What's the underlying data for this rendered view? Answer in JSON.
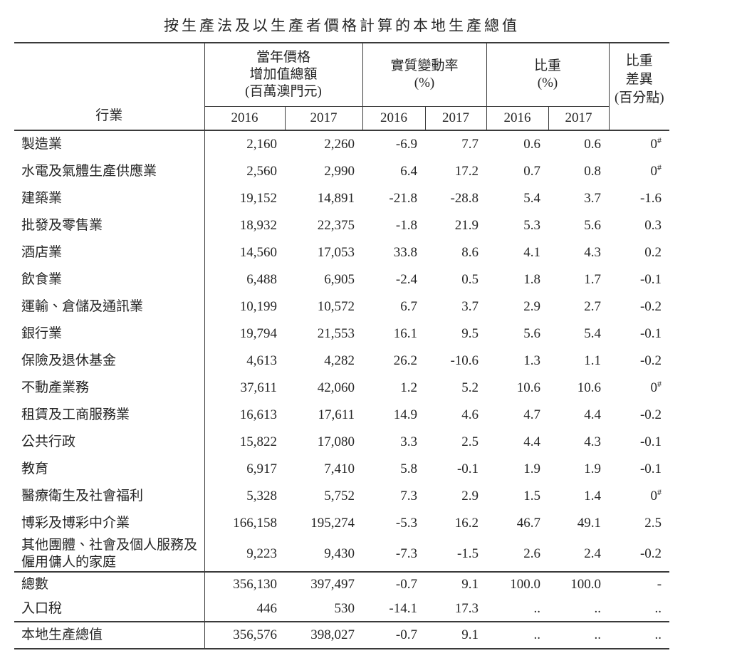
{
  "title": "按生產法及以生產者價格計算的本地生產總值",
  "table": {
    "industry_header": "行業",
    "groups": [
      {
        "label": "當年價格\n增加值總額\n(百萬澳門元)",
        "years": [
          "2016",
          "2017"
        ]
      },
      {
        "label": "實質變動率\n(%)",
        "years": [
          "2016",
          "2017"
        ]
      },
      {
        "label": "比重\n(%)",
        "years": [
          "2016",
          "2017"
        ]
      }
    ],
    "diff_header": "比重\n差異\n(百分點)",
    "sections": [
      {
        "name": "industries",
        "rows": [
          {
            "industry": "製造業",
            "values": [
              "2,160",
              "2,260",
              "-6.9",
              "7.7",
              "0.6",
              "0.6",
              "0#"
            ]
          },
          {
            "industry": "水電及氣體生產供應業",
            "values": [
              "2,560",
              "2,990",
              "6.4",
              "17.2",
              "0.7",
              "0.8",
              "0#"
            ]
          },
          {
            "industry": "建築業",
            "values": [
              "19,152",
              "14,891",
              "-21.8",
              "-28.8",
              "5.4",
              "3.7",
              "-1.6"
            ]
          },
          {
            "industry": "批發及零售業",
            "values": [
              "18,932",
              "22,375",
              "-1.8",
              "21.9",
              "5.3",
              "5.6",
              "0.3"
            ]
          },
          {
            "industry": "酒店業",
            "values": [
              "14,560",
              "17,053",
              "33.8",
              "8.6",
              "4.1",
              "4.3",
              "0.2"
            ]
          },
          {
            "industry": "飲食業",
            "values": [
              "6,488",
              "6,905",
              "-2.4",
              "0.5",
              "1.8",
              "1.7",
              "-0.1"
            ]
          },
          {
            "industry": "運輸、倉儲及通訊業",
            "values": [
              "10,199",
              "10,572",
              "6.7",
              "3.7",
              "2.9",
              "2.7",
              "-0.2"
            ]
          },
          {
            "industry": "銀行業",
            "values": [
              "19,794",
              "21,553",
              "16.1",
              "9.5",
              "5.6",
              "5.4",
              "-0.1"
            ]
          },
          {
            "industry": "保險及退休基金",
            "values": [
              "4,613",
              "4,282",
              "26.2",
              "-10.6",
              "1.3",
              "1.1",
              "-0.2"
            ]
          },
          {
            "industry": "不動產業務",
            "values": [
              "37,611",
              "42,060",
              "1.2",
              "5.2",
              "10.6",
              "10.6",
              "0#"
            ]
          },
          {
            "industry": "租賃及工商服務業",
            "values": [
              "16,613",
              "17,611",
              "14.9",
              "4.6",
              "4.7",
              "4.4",
              "-0.2"
            ]
          },
          {
            "industry": "公共行政",
            "values": [
              "15,822",
              "17,080",
              "3.3",
              "2.5",
              "4.4",
              "4.3",
              "-0.1"
            ]
          },
          {
            "industry": "教育",
            "values": [
              "6,917",
              "7,410",
              "5.8",
              "-0.1",
              "1.9",
              "1.9",
              "-0.1"
            ]
          },
          {
            "industry": "醫療衛生及社會福利",
            "values": [
              "5,328",
              "5,752",
              "7.3",
              "2.9",
              "1.5",
              "1.4",
              "0#"
            ]
          },
          {
            "industry": "博彩及博彩中介業",
            "values": [
              "166,158",
              "195,274",
              "-5.3",
              "16.2",
              "46.7",
              "49.1",
              "2.5"
            ]
          },
          {
            "industry": "其他團體、社會及個人服務及僱用傭人的家庭",
            "values": [
              "9,223",
              "9,430",
              "-7.3",
              "-1.5",
              "2.6",
              "2.4",
              "-0.2"
            ]
          }
        ]
      },
      {
        "name": "totals",
        "rows": [
          {
            "industry": "總數",
            "values": [
              "356,130",
              "397,497",
              "-0.7",
              "9.1",
              "100.0",
              "100.0",
              "-"
            ]
          },
          {
            "industry": "入口稅",
            "values": [
              "446",
              "530",
              "-14.1",
              "17.3",
              "..",
              "..",
              ".."
            ]
          }
        ]
      },
      {
        "name": "gdp",
        "rows": [
          {
            "industry": "本地生產總值",
            "values": [
              "356,576",
              "398,027",
              "-0.7",
              "9.1",
              "..",
              "..",
              ".."
            ]
          }
        ]
      }
    ]
  }
}
